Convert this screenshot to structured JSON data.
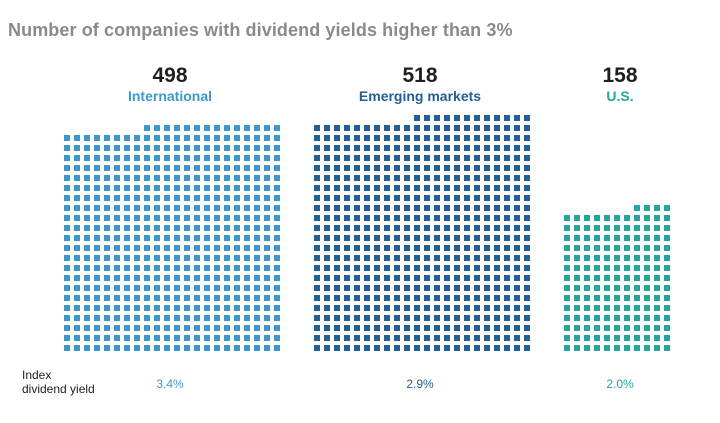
{
  "title": "Number of companies with dividend yields higher than 3%",
  "row_label_line1": "Index",
  "row_label_line2": "dividend yield",
  "colors": {
    "International": "#3d97cd",
    "Emerging markets": "#235f95",
    "U.S.": "#26a59a"
  },
  "chart_data": {
    "type": "bar",
    "style": "waffle (one square per company)",
    "categories": [
      "International",
      "Emerging markets",
      "U.S."
    ],
    "values": [
      498,
      518,
      158
    ],
    "count_labels": [
      "498",
      "518",
      "158"
    ],
    "index_dividend_yield": [
      "3.4%",
      "2.9%",
      "2.0%"
    ],
    "title": "Number of companies with dividend yields higher than 3%"
  }
}
